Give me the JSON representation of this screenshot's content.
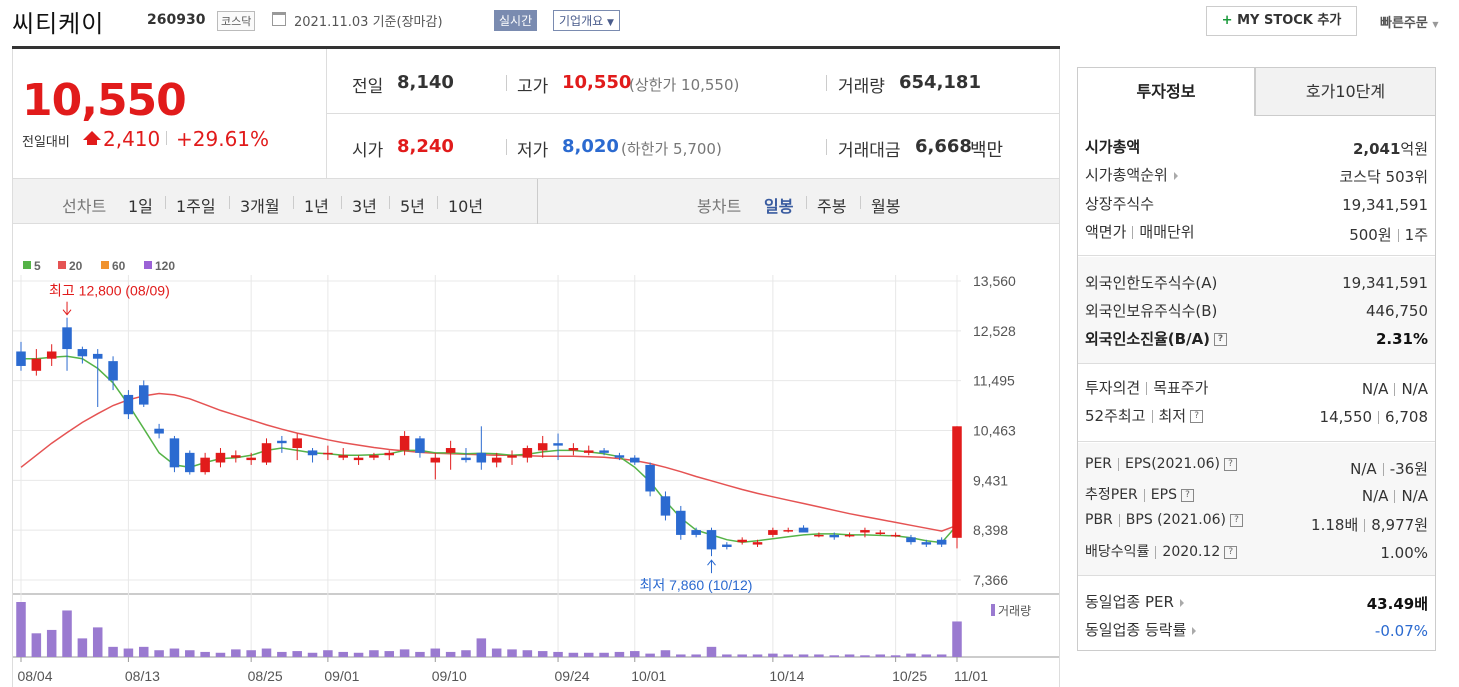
{
  "header": {
    "name": "씨티케이",
    "code": "260930",
    "market": "코스닥",
    "date": "2021.11.03",
    "basis": "기준(장마감)",
    "realtime": "실시간",
    "overview": "기업개요",
    "mystock": "MY STOCK 추가",
    "quick_order": "빠른주문"
  },
  "price": {
    "current": "10,550",
    "change_label": "전일대비",
    "change": "2,410",
    "change_pct": "+29.61%"
  },
  "quotes": {
    "prev_label": "전일",
    "prev": "8,140",
    "high_label": "고가",
    "high": "10,550",
    "upper_limit": "(상한가 10,550)",
    "volume_label": "거래량",
    "volume": "654,181",
    "open_label": "시가",
    "open": "8,240",
    "low_label": "저가",
    "low": "8,020",
    "lower_limit": "(하한가 5,700)",
    "amount_label": "거래대금",
    "amount": "6,668",
    "amount_unit": "백만"
  },
  "period_bar": {
    "line_label": "선차트",
    "line_items": [
      "1일",
      "1주일",
      "3개월",
      "1년",
      "3년",
      "5년",
      "10년"
    ],
    "candle_label": "봉차트",
    "candle_items": [
      "일봉",
      "주봉",
      "월봉"
    ],
    "active": "일봉"
  },
  "colors": {
    "up": "#e11b1b",
    "down": "#2b6ad0",
    "ma5": "#55b347",
    "ma20": "#e55353",
    "ma60": "#f0922e",
    "ma120": "#9b62d6",
    "volume": "#9a7ad0"
  },
  "chart_data": {
    "type": "candlestick",
    "legend": [
      "5",
      "20",
      "60",
      "120"
    ],
    "y_ticks": [
      13560,
      12528,
      11495,
      10463,
      9431,
      8398,
      7366
    ],
    "y_range": [
      7366,
      13560
    ],
    "x_ticks": [
      "08/04",
      "08/13",
      "08/25",
      "09/01",
      "09/10",
      "09/24",
      "10/01",
      "10/14",
      "10/25",
      "11/01"
    ],
    "x_tick_index": [
      0,
      7,
      15,
      20,
      27,
      35,
      40,
      49,
      57,
      61
    ],
    "max_note": "최고 12,800 (08/09)",
    "max_index": 3,
    "min_note": "최저 7,860 (10/12)",
    "min_index": 45,
    "volume_label": "거래량",
    "candles": [
      [
        12100,
        12300,
        11700,
        11800
      ],
      [
        11700,
        12150,
        11600,
        11950
      ],
      [
        11950,
        12250,
        11800,
        12100
      ],
      [
        12600,
        12800,
        11700,
        12150
      ],
      [
        12150,
        12200,
        11850,
        12000
      ],
      [
        12050,
        12150,
        10950,
        11950
      ],
      [
        11900,
        12000,
        11300,
        11500
      ],
      [
        11200,
        11300,
        10700,
        10800
      ],
      [
        11400,
        11500,
        10950,
        11000
      ],
      [
        10500,
        10600,
        10300,
        10400
      ],
      [
        10300,
        10350,
        9600,
        9700
      ],
      [
        10000,
        10050,
        9550,
        9600
      ],
      [
        9600,
        10000,
        9550,
        9900
      ],
      [
        9800,
        10100,
        9700,
        10000
      ],
      [
        9900,
        10050,
        9800,
        9950
      ],
      [
        9850,
        10000,
        9750,
        9900
      ],
      [
        9800,
        10300,
        9750,
        10200
      ],
      [
        10250,
        10350,
        10000,
        10200
      ],
      [
        10100,
        10400,
        9850,
        10300
      ],
      [
        10050,
        10100,
        9800,
        9950
      ],
      [
        10000,
        10150,
        9850,
        10000
      ],
      [
        9900,
        10100,
        9850,
        9950
      ],
      [
        9850,
        9950,
        9750,
        9900
      ],
      [
        9900,
        10000,
        9850,
        9950
      ],
      [
        9950,
        10050,
        9850,
        10000
      ],
      [
        10050,
        10450,
        9950,
        10350
      ],
      [
        10300,
        10350,
        9900,
        10000
      ],
      [
        9800,
        10000,
        9450,
        9900
      ],
      [
        10000,
        10250,
        9650,
        10100
      ],
      [
        9900,
        10100,
        9800,
        9850
      ],
      [
        10000,
        10550,
        9650,
        9800
      ],
      [
        9800,
        10000,
        9700,
        9900
      ],
      [
        9900,
        10050,
        9750,
        9950
      ],
      [
        9900,
        10150,
        9800,
        10100
      ],
      [
        10050,
        10350,
        9900,
        10200
      ],
      [
        10200,
        10400,
        9850,
        10150
      ],
      [
        10050,
        10200,
        9950,
        10100
      ],
      [
        10000,
        10150,
        9950,
        10050
      ],
      [
        10050,
        10100,
        9950,
        10000
      ],
      [
        9950,
        10000,
        9850,
        9900
      ],
      [
        9900,
        9950,
        9750,
        9800
      ],
      [
        9750,
        9800,
        9100,
        9200
      ],
      [
        9100,
        9200,
        8600,
        8700
      ],
      [
        8800,
        8900,
        8200,
        8300
      ],
      [
        8400,
        8450,
        8250,
        8300
      ],
      [
        8400,
        8450,
        7860,
        8000
      ],
      [
        8100,
        8150,
        8000,
        8050
      ],
      [
        8150,
        8250,
        8100,
        8200
      ],
      [
        8100,
        8200,
        8050,
        8150
      ],
      [
        8300,
        8450,
        8250,
        8400
      ],
      [
        8400,
        8450,
        8350,
        8400
      ],
      [
        8450,
        8500,
        8350,
        8350
      ],
      [
        8300,
        8350,
        8250,
        8300
      ],
      [
        8300,
        8350,
        8200,
        8250
      ],
      [
        8300,
        8350,
        8250,
        8300
      ],
      [
        8350,
        8450,
        8250,
        8400
      ],
      [
        8350,
        8400,
        8300,
        8350
      ],
      [
        8300,
        8350,
        8250,
        8300
      ],
      [
        8250,
        8300,
        8100,
        8150
      ],
      [
        8150,
        8200,
        8050,
        8100
      ],
      [
        8200,
        8250,
        8050,
        8100
      ],
      [
        8240,
        10550,
        8020,
        10550
      ]
    ],
    "volume": [
      65,
      28,
      32,
      55,
      22,
      35,
      12,
      10,
      12,
      8,
      10,
      8,
      6,
      5,
      9,
      8,
      10,
      6,
      7,
      5,
      8,
      6,
      5,
      8,
      7,
      9,
      6,
      10,
      6,
      8,
      22,
      10,
      9,
      8,
      7,
      6,
      5,
      5,
      5,
      6,
      7,
      4,
      8,
      3,
      3,
      12,
      3,
      3,
      3,
      4,
      3,
      3,
      3,
      2,
      3,
      2,
      3,
      2,
      4,
      3,
      3,
      42
    ],
    "ma5": [
      11950,
      11950,
      11980,
      12000,
      11950,
      11750,
      11450,
      11000,
      10500,
      10000,
      9750,
      9700,
      9800,
      9880,
      9900,
      9950,
      10050,
      10100,
      10050,
      10000,
      9980,
      9950,
      9950,
      9960,
      9980,
      10050,
      10050,
      10000,
      10000,
      9980,
      9990,
      9980,
      9950,
      9970,
      10020,
      10050,
      10050,
      10020,
      9980,
      9920,
      9700,
      9400,
      9000,
      8650,
      8400,
      8300,
      8200,
      8150,
      8180,
      8220,
      8260,
      8300,
      8320,
      8320,
      8300,
      8300,
      8290,
      8280,
      8240,
      8180,
      8140,
      8500
    ],
    "ma20": [
      9700,
      9950,
      10200,
      10420,
      10630,
      10810,
      10980,
      11100,
      11180,
      11230,
      11200,
      11120,
      11000,
      10880,
      10780,
      10680,
      10580,
      10490,
      10410,
      10340,
      10270,
      10210,
      10160,
      10110,
      10070,
      10040,
      10010,
      9990,
      9980,
      9970,
      9960,
      9950,
      9950,
      9940,
      9930,
      9930,
      9930,
      9920,
      9910,
      9880,
      9840,
      9780,
      9700,
      9610,
      9510,
      9420,
      9330,
      9240,
      9160,
      9090,
      9020,
      8950,
      8880,
      8810,
      8740,
      8680,
      8620,
      8560,
      8500,
      8440,
      8380,
      8500
    ]
  },
  "info_panel": {
    "tab_info": "투자정보",
    "tab_hoga": "호가10단계",
    "market_cap_label": "시가총액",
    "market_cap": "2,041",
    "market_cap_unit": "억원",
    "cap_rank_label": "시가총액순위",
    "cap_rank": "코스닥 503위",
    "shares_label": "상장주식수",
    "shares": "19,341,591",
    "par_label": "액면가",
    "unit_label": "매매단위",
    "par": "500원",
    "unit": "1주",
    "foreign_limit_label": "외국인한도주식수(A)",
    "foreign_limit": "19,341,591",
    "foreign_hold_label": "외국인보유주식수(B)",
    "foreign_hold": "446,750",
    "foreign_ratio_label": "외국인소진율(B/A)",
    "foreign_ratio": "2.31%",
    "opinion_label": "투자의견",
    "target_label": "목표주가",
    "opinion": "N/A",
    "target": "N/A",
    "w52_high_label": "52주최고",
    "w52_low_label": "최저",
    "w52_high": "14,550",
    "w52_low": "6,708",
    "per_label": "PER",
    "eps_label": "EPS(2021.06)",
    "per": "N/A",
    "eps": "-36원",
    "est_per_label": "추정PER",
    "est_eps_label": "EPS",
    "est_per": "N/A",
    "est_eps": "N/A",
    "pbr_label": "PBR",
    "bps_label": "BPS (2021.06)",
    "pbr": "1.18배",
    "bps": "8,977원",
    "div_label": "배당수익률",
    "div_date": "2020.12",
    "div": "1.00%",
    "sector_per_label": "동일업종 PER",
    "sector_per": "43.49배",
    "sector_chg_label": "동일업종 등락률",
    "sector_chg": "-0.07%"
  }
}
